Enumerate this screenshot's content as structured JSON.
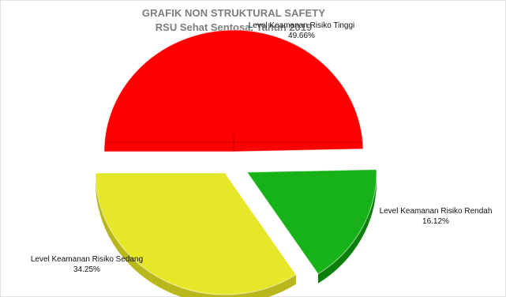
{
  "header": {
    "title": "GRAFIK NON STRUKTURAL SAFETY",
    "subtitle": "RSU Sehat Sentosa, Tahun 2019"
  },
  "colors": {
    "high": "#ff0000",
    "high_dark": "#c90000",
    "low": "#17b217",
    "low_dark": "#0a7f0a",
    "medium": "#e7e72a",
    "medium_dark": "#b8b81d",
    "leader_line": "#2aa02a"
  },
  "chart_data": {
    "type": "pie",
    "title": "GRAFIK NON STRUKTURAL SAFETY",
    "subtitle": "RSU Sehat Sentosa, Tahun 2019",
    "slices": [
      {
        "label": "Level Keamanan Risiko Tinggi",
        "value": 49.66,
        "display": "49.66%",
        "color_key": "high"
      },
      {
        "label": "Level Keamanan Risiko Rendah",
        "value": 16.12,
        "display": "16.12%",
        "color_key": "low"
      },
      {
        "label": "Level Keamanan Risiko Sedang",
        "value": 34.25,
        "display": "34.25%",
        "color_key": "medium"
      }
    ],
    "legend": "none",
    "grid": false
  }
}
